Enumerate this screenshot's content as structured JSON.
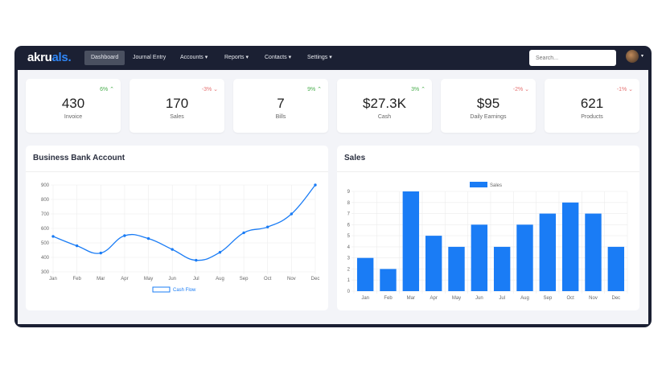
{
  "nav": {
    "logo_a": "akru",
    "logo_b": "als.",
    "items": [
      {
        "label": "Dashboard"
      },
      {
        "label": "Journal Entry"
      },
      {
        "label": "Accounts ▾"
      },
      {
        "label": "Reports ▾"
      },
      {
        "label": "Contacts ▾"
      },
      {
        "label": "Settings ▾"
      }
    ],
    "search_placeholder": "Search...",
    "avatar_caret": "▾"
  },
  "cards": [
    {
      "value": "430",
      "label": "Invoice",
      "change": "6% ⌃",
      "trend": "up"
    },
    {
      "value": "170",
      "label": "Sales",
      "change": "-3% ⌄",
      "trend": "down"
    },
    {
      "value": "7",
      "label": "Bills",
      "change": "9% ⌃",
      "trend": "up"
    },
    {
      "value": "$27.3K",
      "label": "Cash",
      "change": "3% ⌃",
      "trend": "up"
    },
    {
      "value": "$95",
      "label": "Daily Earnings",
      "change": "-2% ⌄",
      "trend": "down"
    },
    {
      "value": "621",
      "label": "Products",
      "change": "-1% ⌄",
      "trend": "down"
    }
  ],
  "colors": {
    "accent": "#1a7cf5",
    "nav_bg": "#1b2033",
    "up": "#4caf50",
    "down": "#e57373"
  },
  "panels": {
    "bank_title": "Business Bank Account",
    "sales_title": "Sales"
  },
  "chart_data": [
    {
      "type": "line",
      "categories": [
        "Jan",
        "Feb",
        "Mar",
        "Apr",
        "May",
        "Jun",
        "Jul",
        "Aug",
        "Sep",
        "Oct",
        "Nov",
        "Dec"
      ],
      "series": [
        {
          "name": "Cash Flow",
          "values": [
            545,
            480,
            430,
            550,
            530,
            455,
            380,
            435,
            570,
            610,
            700,
            900
          ]
        }
      ],
      "ylim": [
        300,
        900
      ],
      "yticks": [
        "300",
        "400",
        "500",
        "600",
        "700",
        "800",
        "900"
      ],
      "grid": true,
      "legend": "bottom"
    },
    {
      "type": "bar",
      "categories": [
        "Jan",
        "Feb",
        "Mar",
        "Apr",
        "May",
        "Jun",
        "Jul",
        "Aug",
        "Sep",
        "Oct",
        "Nov",
        "Dec"
      ],
      "series": [
        {
          "name": "Sales",
          "values": [
            3,
            2,
            9,
            5,
            4,
            6,
            4,
            6,
            7,
            8,
            7,
            4
          ]
        }
      ],
      "ylim": [
        0,
        9
      ],
      "yticks": [
        "0",
        "1",
        "2",
        "3",
        "4",
        "5",
        "6",
        "7",
        "8",
        "9"
      ],
      "grid": true,
      "legend": "top"
    }
  ]
}
